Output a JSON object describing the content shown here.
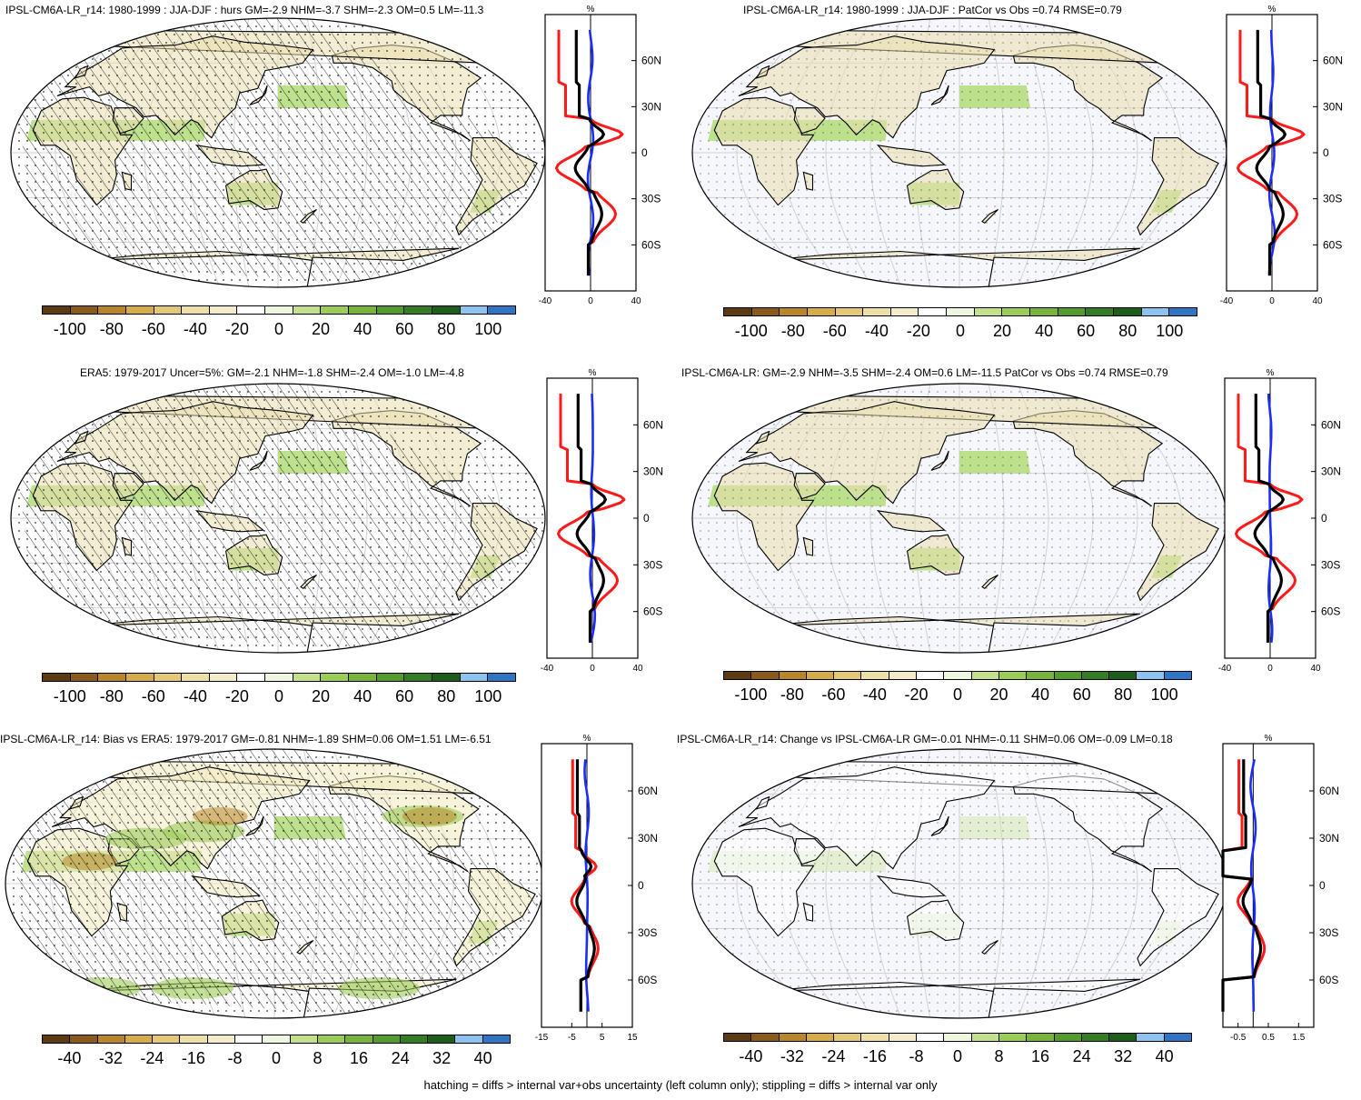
{
  "footer_note": "hatching = diffs > internal var+obs uncertainty (left column only); stippling = diffs > internal var only",
  "colors": {
    "diverging_percent": [
      "#5b3a14",
      "#8a5a1c",
      "#b8862a",
      "#d4ac4a",
      "#e3c878",
      "#ede0a6",
      "#f4ecc8",
      "#ffffff",
      "#eef6e0",
      "#c4e08a",
      "#9ccc58",
      "#78b43c",
      "#549a2c",
      "#357d24",
      "#1e5e1a",
      "#8dc3ee",
      "#2f75c4"
    ],
    "line_red": "#ff1a1a",
    "line_blue": "#1a2cff",
    "line_black": "#000000",
    "ocean": "#f6f7fc",
    "land_tan": "#eadfae",
    "land_green": "#b2dc78",
    "graticule": "#d2d2d2"
  },
  "panels": [
    {
      "title": "IPSL-CM6A-LR_r14: 1980-1999 : JJA-DJF : hurs GM=-2.9 NHM=-3.7 SHM=-2.3 OM=0.5 LM=-11.3",
      "colorbar_labels": [
        "-100",
        "-80",
        "-60",
        "-40",
        "-20",
        "0",
        "20",
        "40",
        "60",
        "80",
        "100"
      ],
      "zonal": {
        "unit": "%",
        "xticks": [
          "-40",
          "0",
          "40"
        ],
        "xlim": [
          -40,
          40
        ],
        "lat_labels": [
          "60N",
          "30N",
          "0",
          "30S",
          "60S"
        ]
      }
    },
    {
      "title": "IPSL-CM6A-LR_r14: 1980-1999 : JJA-DJF : PatCor vs Obs =0.74 RMSE=0.79",
      "colorbar_labels": [
        "-100",
        "-80",
        "-60",
        "-40",
        "-20",
        "0",
        "20",
        "40",
        "60",
        "80",
        "100"
      ],
      "zonal": {
        "unit": "%",
        "xticks": [
          "-40",
          "0",
          "40"
        ],
        "xlim": [
          -40,
          40
        ],
        "lat_labels": [
          "60N",
          "30N",
          "0",
          "30S",
          "60S"
        ]
      }
    },
    {
      "title": "ERA5: 1979-2017 Uncer=5%: GM=-2.1 NHM=-1.8 SHM=-2.4 OM=-1.0 LM=-4.8",
      "colorbar_labels": [
        "-100",
        "-80",
        "-60",
        "-40",
        "-20",
        "0",
        "20",
        "40",
        "60",
        "80",
        "100"
      ],
      "zonal": {
        "unit": "%",
        "xticks": [
          "-40",
          "0",
          "40"
        ],
        "xlim": [
          -40,
          40
        ],
        "lat_labels": [
          "60N",
          "30N",
          "0",
          "30S",
          "60S"
        ]
      }
    },
    {
      "title": "IPSL-CM6A-LR: GM=-2.9 NHM=-3.5 SHM=-2.4 OM=0.6 LM=-11.5 PatCor vs Obs =0.74 RMSE=0.79",
      "colorbar_labels": [
        "-100",
        "-80",
        "-60",
        "-40",
        "-20",
        "0",
        "20",
        "40",
        "60",
        "80",
        "100"
      ],
      "zonal": {
        "unit": "%",
        "xticks": [
          "-40",
          "0",
          "40"
        ],
        "xlim": [
          -40,
          40
        ],
        "lat_labels": [
          "60N",
          "30N",
          "0",
          "30S",
          "60S"
        ]
      }
    },
    {
      "title": "IPSL-CM6A-LR_r14: Bias vs ERA5: 1979-2017 GM=-0.81 NHM=-1.89 SHM=0.06 OM=1.51 LM=-6.51",
      "colorbar_labels": [
        "-40",
        "-32",
        "-24",
        "-16",
        "-8",
        "0",
        "8",
        "16",
        "24",
        "32",
        "40"
      ],
      "zonal": {
        "unit": "%",
        "xticks": [
          "-15",
          "-5",
          "5",
          "15"
        ],
        "xlim": [
          -15,
          15
        ],
        "lat_labels": [
          "60N",
          "30N",
          "0",
          "30S",
          "60S"
        ]
      }
    },
    {
      "title": "IPSL-CM6A-LR_r14: Change vs IPSL-CM6A-LR GM=-0.01 NHM=-0.11 SHM=0.06 OM=-0.09 LM=0.18",
      "colorbar_labels": [
        "-40",
        "-32",
        "-24",
        "-16",
        "-8",
        "0",
        "8",
        "16",
        "24",
        "32",
        "40"
      ],
      "zonal": {
        "unit": "%",
        "xticks": [
          "-0.5",
          "0.5",
          "1.5"
        ],
        "xlim": [
          -1,
          2
        ],
        "lat_labels": [
          "60N",
          "30N",
          "0",
          "30S",
          "60S"
        ]
      }
    }
  ]
}
